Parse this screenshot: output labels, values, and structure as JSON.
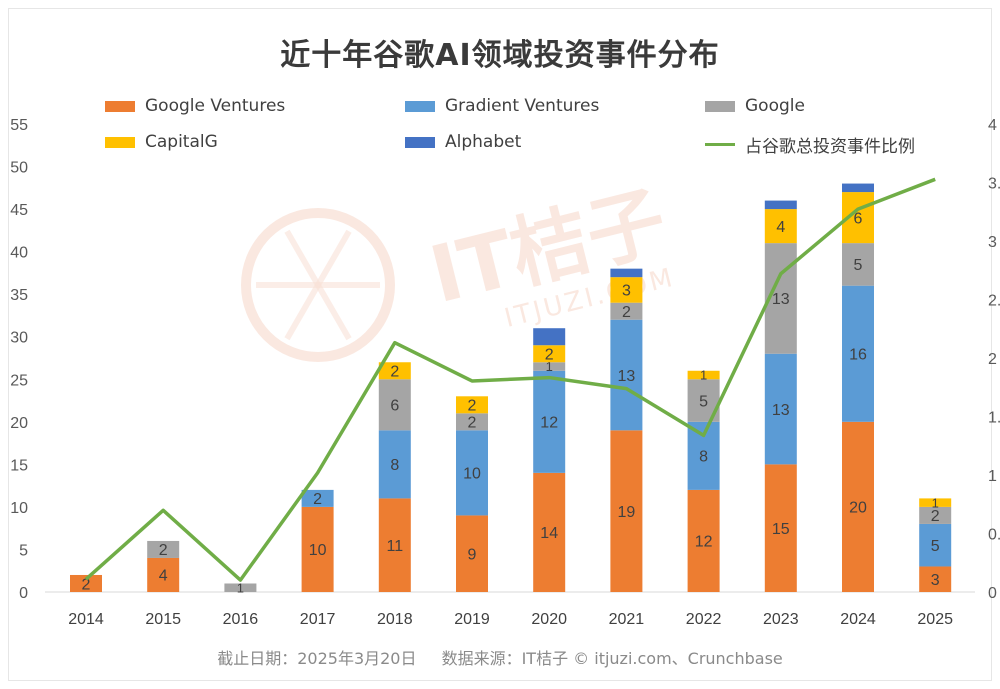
{
  "title": "近十年谷歌AI领域投资事件分布",
  "footer": {
    "date": "截止日期：2025年3月20日",
    "source": "数据来源：IT桔子 © itjuzi.com、Crunchbase"
  },
  "watermark": {
    "cn": "IT桔子",
    "en": "ITJUZI.COM"
  },
  "colors": {
    "google_ventures": "#ed7d31",
    "gradient_ventures": "#5b9bd5",
    "google": "#a5a5a5",
    "capitalg": "#ffc000",
    "alphabet": "#4472c4",
    "ratio_line": "#70ad47"
  },
  "chart_data": {
    "type": "bar",
    "stacked": true,
    "title": "近十年谷歌AI领域投资事件分布",
    "categories": [
      "2014",
      "2015",
      "2016",
      "2017",
      "2018",
      "2019",
      "2020",
      "2021",
      "2022",
      "2023",
      "2024",
      "2025"
    ],
    "ylim": [
      0,
      55
    ],
    "yticks": [
      0,
      5,
      10,
      15,
      20,
      25,
      30,
      35,
      40,
      45,
      50,
      55
    ],
    "y2_tick_labels_partial": [
      "0",
      "0.",
      "1",
      "1.",
      "2",
      "2.",
      "3",
      "3.",
      "4"
    ],
    "grid": false,
    "legend_position": "top",
    "series": [
      {
        "name": "Google Ventures",
        "color_key": "google_ventures",
        "values": [
          2,
          4,
          0,
          10,
          11,
          9,
          14,
          19,
          12,
          15,
          20,
          3
        ]
      },
      {
        "name": "Gradient Ventures",
        "color_key": "gradient_ventures",
        "values": [
          0,
          0,
          0,
          2,
          8,
          10,
          12,
          13,
          8,
          13,
          16,
          5
        ]
      },
      {
        "name": "Google",
        "color_key": "google",
        "values": [
          0,
          2,
          1,
          0,
          6,
          2,
          1,
          2,
          5,
          13,
          5,
          2
        ]
      },
      {
        "name": "CapitalG",
        "color_key": "capitalg",
        "values": [
          0,
          0,
          0,
          0,
          2,
          2,
          2,
          3,
          1,
          4,
          6,
          1
        ]
      },
      {
        "name": "Alphabet",
        "color_key": "alphabet",
        "values": [
          0,
          0,
          0,
          0,
          0,
          0,
          2,
          1,
          0,
          1,
          1,
          0
        ]
      }
    ],
    "data_labels_shown": {
      "Google Ventures": [
        2,
        4,
        null,
        10,
        11,
        9,
        14,
        19,
        12,
        15,
        20,
        3
      ],
      "Gradient Ventures": [
        null,
        null,
        null,
        2,
        8,
        10,
        12,
        13,
        8,
        13,
        16,
        5
      ],
      "Google": [
        null,
        2,
        1,
        null,
        6,
        2,
        1,
        2,
        5,
        13,
        5,
        2
      ],
      "CapitalG": [
        null,
        null,
        null,
        null,
        2,
        2,
        2,
        3,
        1,
        4,
        6,
        1
      ],
      "Alphabet": [
        null,
        null,
        null,
        null,
        null,
        null,
        null,
        null,
        null,
        null,
        null,
        null
      ]
    },
    "line_series": {
      "name": "占谷歌总投资事件比例",
      "axis": "secondary",
      "color_key": "ratio_line",
      "y_left_equiv": [
        1.5,
        9.6,
        1.4,
        14.0,
        29.3,
        24.8,
        25.2,
        23.9,
        18.4,
        37.4,
        45.0,
        48.5
      ]
    }
  }
}
